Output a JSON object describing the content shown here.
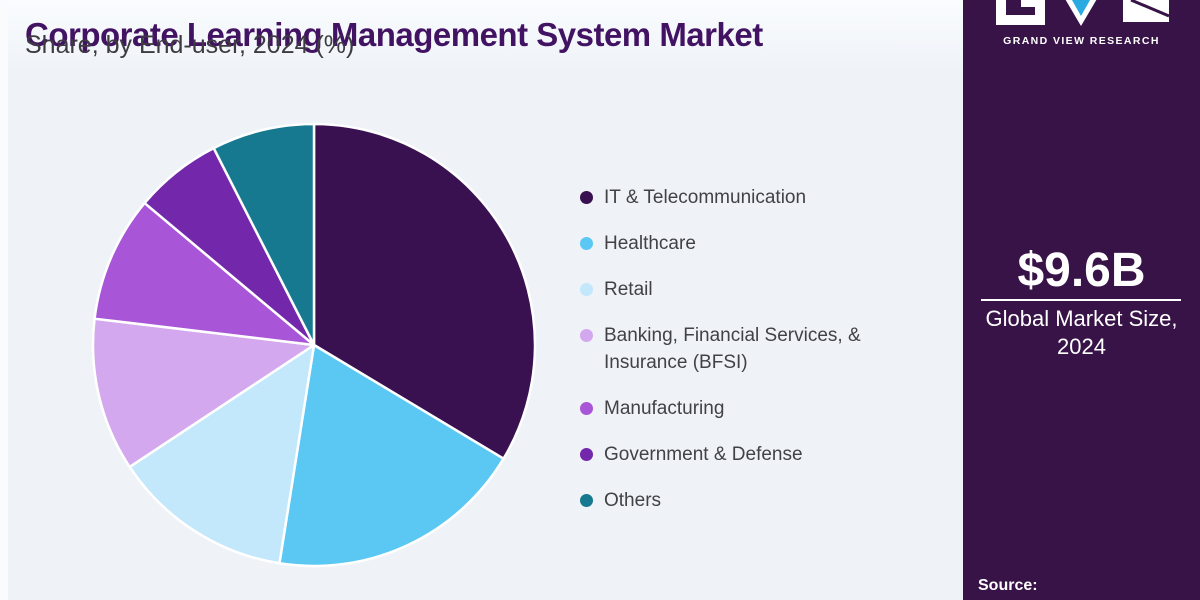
{
  "page": {
    "background": "#EFF3F8"
  },
  "header": {
    "title": "Corporate Learning Management System Market",
    "subtitle": "Share, by End-user, 2024 (%)"
  },
  "chart_data": {
    "type": "pie",
    "title": "Corporate Learning Management System Market Share, by End-user, 2024 (%)",
    "units": "percent of total market share",
    "start_angle_deg": 0,
    "direction": "clockwise",
    "legend_position": "right",
    "note": "No numeric labels shown in image; values estimated from slice arc angles",
    "slices": [
      {
        "label": "IT & Telecommunication",
        "value": 33.6,
        "color": "#3A1150"
      },
      {
        "label": "Healthcare",
        "value": 18.9,
        "color": "#5BC8F4"
      },
      {
        "label": "Retail",
        "value": 13.2,
        "color": "#C3E7FB"
      },
      {
        "label": "Banking, Financial Services, & Insurance (BFSI)",
        "value": 11.2,
        "color": "#D4A8EE"
      },
      {
        "label": "Manufacturing",
        "value": 9.2,
        "color": "#A855D8"
      },
      {
        "label": "Government & Defense",
        "value": 6.4,
        "color": "#7327AA"
      },
      {
        "label": "Others",
        "value": 7.5,
        "color": "#17798F"
      }
    ]
  },
  "sidebar": {
    "background": "#371347",
    "logo": {
      "brand": "GRAND VIEW RESEARCH",
      "accent_color": "#29ABE2"
    },
    "stat": {
      "value": "$9.6B",
      "label_line1": "Global Market Size,",
      "label_line2": "2024"
    },
    "source_label": "Source:"
  }
}
